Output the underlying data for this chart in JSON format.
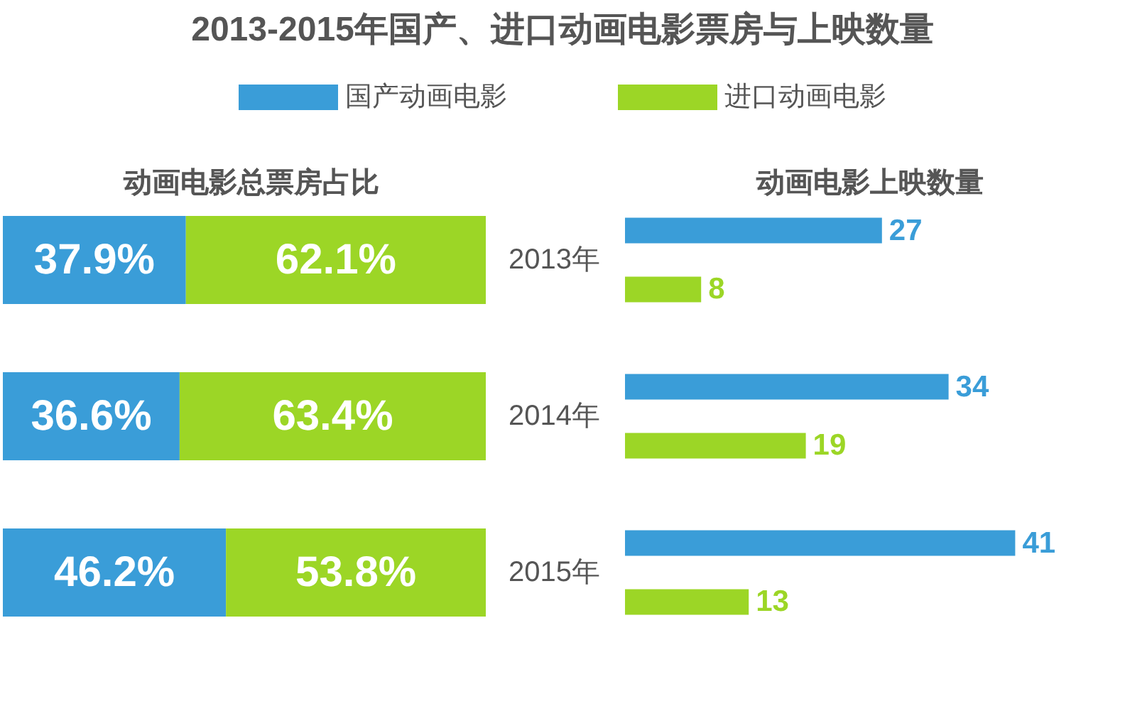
{
  "chart_data": [
    {
      "type": "bar",
      "orientation": "horizontal",
      "stacked": true,
      "title": "2013-2015年国产、进口动画电影票房与上映数量",
      "subtitle": "动画电影总票房占比",
      "categories": [
        "2013年",
        "2014年",
        "2015年"
      ],
      "series": [
        {
          "name": "国产动画电影",
          "color": "#3a9dd8",
          "values": [
            37.9,
            36.6,
            46.2
          ],
          "value_labels": [
            "37.9%",
            "36.6%",
            "46.2%"
          ]
        },
        {
          "name": "进口动画电影",
          "color": "#9cd626",
          "values": [
            62.1,
            63.4,
            53.8
          ],
          "value_labels": [
            "62.1%",
            "63.4%",
            "53.8%"
          ]
        }
      ],
      "xlim": [
        0,
        100
      ],
      "tick_labels": "y",
      "legend": "top",
      "grid": false
    },
    {
      "type": "bar",
      "orientation": "horizontal",
      "title": "动画电影上映数量",
      "categories": [
        null,
        null,
        null
      ],
      "series": [
        {
          "color": "#3a9dd8",
          "values": [
            27,
            34,
            41
          ]
        },
        {
          "color": "#9cd626",
          "values": [
            8,
            19,
            13
          ]
        }
      ],
      "tick_labels": false,
      "data_labels": true,
      "legend": false,
      "grid": false
    }
  ]
}
